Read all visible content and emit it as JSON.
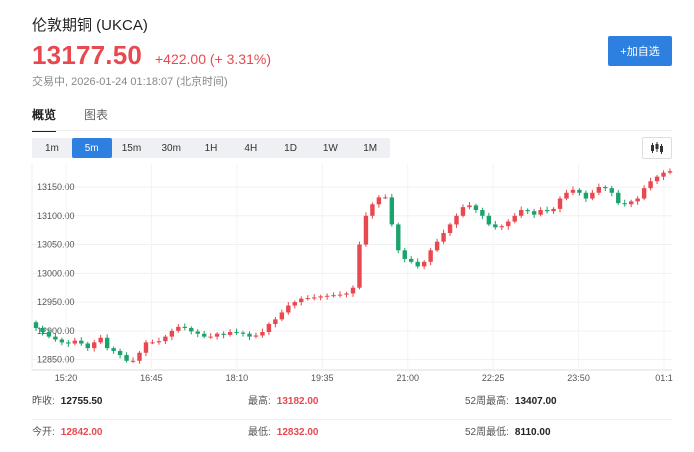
{
  "header": {
    "title": "伦敦期铜 (UKCA)",
    "price": "13177.50",
    "change": "+422.00",
    "change_pct": "(+ 3.31%)",
    "status": "交易中, 2026-01-24 01:18:07 (北京时间)",
    "add_watchlist": "+加自选"
  },
  "view_tabs": [
    {
      "label": "概览",
      "active": true
    },
    {
      "label": "图表",
      "active": false
    }
  ],
  "periods": [
    {
      "label": "1m",
      "active": false
    },
    {
      "label": "5m",
      "active": true
    },
    {
      "label": "15m",
      "active": false
    },
    {
      "label": "30m",
      "active": false
    },
    {
      "label": "1H",
      "active": false
    },
    {
      "label": "4H",
      "active": false
    },
    {
      "label": "1D",
      "active": false
    },
    {
      "label": "1W",
      "active": false
    },
    {
      "label": "1M",
      "active": false
    }
  ],
  "chart_type_icon": "candlestick-icon",
  "colors": {
    "up": "#e8484f",
    "down": "#1aa36b",
    "accent": "#2d7fe0"
  },
  "chart_data": {
    "type": "candlestick",
    "title": "",
    "xlabel": "",
    "ylabel": "",
    "ylim": [
      12832,
      13190
    ],
    "y_ticks": [
      12850,
      12900,
      12950,
      13000,
      13050,
      13100,
      13150
    ],
    "y_tick_labels": [
      "12850.00",
      "12900.00",
      "12950.00",
      "13000.00",
      "13050.00",
      "13100.00",
      "13150.00"
    ],
    "x_ticks": [
      "15:20",
      "16:45",
      "18:10",
      "19:35",
      "21:00",
      "22:25",
      "23:50",
      "01:1"
    ],
    "grid": true,
    "close": [
      12905,
      12898,
      12890,
      12885,
      12880,
      12878,
      12883,
      12878,
      12870,
      12880,
      12888,
      12870,
      12865,
      12858,
      12848,
      12848,
      12862,
      12880,
      12880,
      12882,
      12890,
      12900,
      12907,
      12905,
      12899,
      12895,
      12890,
      12890,
      12895,
      12893,
      12898,
      12897,
      12895,
      12890,
      12892,
      12898,
      12912,
      12920,
      12932,
      12944,
      12950,
      12956,
      12957,
      12958,
      12960,
      12961,
      12962,
      12963,
      12965,
      12975,
      13050,
      13100,
      13120,
      13132,
      13132,
      13085,
      13040,
      13025,
      13020,
      13012,
      13020,
      13040,
      13055,
      13070,
      13085,
      13100,
      13115,
      13118,
      13110,
      13100,
      13085,
      13080,
      13082,
      13090,
      13100,
      13110,
      13108,
      13102,
      13110,
      13108,
      13112,
      13130,
      13140,
      13145,
      13140,
      13130,
      13140,
      13150,
      13148,
      13140,
      13122,
      13120,
      13125,
      13130,
      13148,
      13160,
      13168,
      13175,
      13177.5
    ]
  },
  "stats": [
    {
      "label": "昨收:",
      "value": "12755.50",
      "red": false
    },
    {
      "label": "最高:",
      "value": "13182.00",
      "red": true
    },
    {
      "label": "52周最高:",
      "value": "13407.00",
      "red": false
    },
    {
      "label": "今开:",
      "value": "12842.00",
      "red": true
    },
    {
      "label": "最低:",
      "value": "12832.00",
      "red": true
    },
    {
      "label": "52周最低:",
      "value": "8110.00",
      "red": false
    }
  ]
}
